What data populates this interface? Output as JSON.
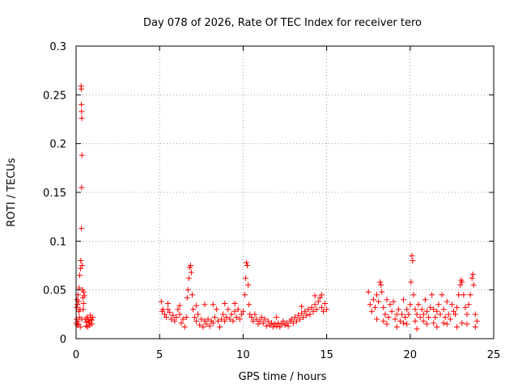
{
  "chart_data": {
    "type": "scatter",
    "title": "Day 078 of 2026, Rate Of TEC Index for receiver tero",
    "xlabel": "GPS time / hours",
    "ylabel": "ROTI / TECUs",
    "xlim": [
      0,
      25
    ],
    "ylim": [
      0,
      0.3
    ],
    "x_ticks": [
      0,
      5,
      10,
      15,
      20,
      25
    ],
    "x_tick_labels": [
      "0",
      "5",
      "10",
      "15",
      "20",
      "25"
    ],
    "y_ticks": [
      0,
      0.05,
      0.1,
      0.15,
      0.2,
      0.25,
      0.3
    ],
    "y_tick_labels": [
      "0",
      "0.05",
      "0.1",
      "0.15",
      "0.2",
      "0.25",
      "0.3"
    ],
    "grid": true,
    "grid_style": "dotted",
    "marker": "plus",
    "color": "#ff0000",
    "points": [
      [
        0.0,
        0.016
      ],
      [
        0.02,
        0.02
      ],
      [
        0.04,
        0.032
      ],
      [
        0.06,
        0.014
      ],
      [
        0.08,
        0.035
      ],
      [
        0.1,
        0.018
      ],
      [
        0.12,
        0.045
      ],
      [
        0.14,
        0.015
      ],
      [
        0.16,
        0.028
      ],
      [
        0.18,
        0.052
      ],
      [
        0.2,
        0.022
      ],
      [
        0.22,
        0.065
      ],
      [
        0.24,
        0.03
      ],
      [
        0.26,
        0.072
      ],
      [
        0.28,
        0.08
      ],
      [
        0.3,
        0.259
      ],
      [
        0.31,
        0.256
      ],
      [
        0.32,
        0.24
      ],
      [
        0.33,
        0.233
      ],
      [
        0.34,
        0.226
      ],
      [
        0.35,
        0.188
      ],
      [
        0.33,
        0.155
      ],
      [
        0.32,
        0.113
      ],
      [
        0.36,
        0.075
      ],
      [
        0.38,
        0.05
      ],
      [
        0.4,
        0.042
      ],
      [
        0.42,
        0.03
      ],
      [
        0.45,
        0.048
      ],
      [
        0.5,
        0.044
      ],
      [
        0.55,
        0.02
      ],
      [
        0.6,
        0.013
      ],
      [
        0.65,
        0.022
      ],
      [
        0.7,
        0.012
      ],
      [
        0.75,
        0.018
      ],
      [
        0.8,
        0.016
      ],
      [
        0.85,
        0.024
      ],
      [
        0.9,
        0.02
      ],
      [
        0.95,
        0.015
      ],
      [
        1.0,
        0.022
      ],
      [
        0.05,
        0.04
      ],
      [
        0.15,
        0.038
      ],
      [
        0.25,
        0.012
      ],
      [
        0.35,
        0.02
      ],
      [
        0.45,
        0.036
      ],
      [
        0.62,
        0.017
      ],
      [
        0.72,
        0.02
      ],
      [
        0.82,
        0.014
      ],
      [
        0.92,
        0.019
      ],
      [
        5.1,
        0.038
      ],
      [
        5.15,
        0.028
      ],
      [
        5.2,
        0.03
      ],
      [
        5.3,
        0.025
      ],
      [
        5.4,
        0.022
      ],
      [
        5.5,
        0.03
      ],
      [
        5.6,
        0.027
      ],
      [
        5.7,
        0.02
      ],
      [
        5.8,
        0.024
      ],
      [
        5.9,
        0.018
      ],
      [
        6.0,
        0.022
      ],
      [
        6.1,
        0.03
      ],
      [
        6.2,
        0.025
      ],
      [
        6.3,
        0.016
      ],
      [
        6.4,
        0.02
      ],
      [
        6.5,
        0.012
      ],
      [
        6.6,
        0.022
      ],
      [
        6.65,
        0.042
      ],
      [
        6.7,
        0.05
      ],
      [
        6.75,
        0.062
      ],
      [
        6.8,
        0.073
      ],
      [
        6.85,
        0.075
      ],
      [
        6.9,
        0.068
      ],
      [
        6.95,
        0.045
      ],
      [
        7.0,
        0.03
      ],
      [
        7.1,
        0.022
      ],
      [
        7.2,
        0.018
      ],
      [
        7.3,
        0.025
      ],
      [
        7.4,
        0.014
      ],
      [
        7.5,
        0.02
      ],
      [
        7.6,
        0.012
      ],
      [
        7.7,
        0.018
      ],
      [
        7.8,
        0.015
      ],
      [
        7.9,
        0.02
      ],
      [
        8.0,
        0.013
      ],
      [
        8.1,
        0.018
      ],
      [
        8.2,
        0.016
      ],
      [
        8.3,
        0.022
      ],
      [
        8.4,
        0.03
      ],
      [
        8.5,
        0.018
      ],
      [
        8.6,
        0.012
      ],
      [
        8.7,
        0.02
      ],
      [
        8.8,
        0.025
      ],
      [
        8.9,
        0.018
      ],
      [
        9.0,
        0.022
      ],
      [
        9.1,
        0.03
      ],
      [
        9.2,
        0.02
      ],
      [
        9.3,
        0.025
      ],
      [
        9.4,
        0.018
      ],
      [
        9.5,
        0.028
      ],
      [
        9.6,
        0.022
      ],
      [
        9.7,
        0.03
      ],
      [
        9.8,
        0.02
      ],
      [
        9.9,
        0.025
      ],
      [
        10.0,
        0.028
      ],
      [
        10.1,
        0.045
      ],
      [
        10.15,
        0.062
      ],
      [
        10.2,
        0.078
      ],
      [
        10.25,
        0.075
      ],
      [
        10.3,
        0.055
      ],
      [
        10.35,
        0.035
      ],
      [
        10.4,
        0.025
      ],
      [
        10.5,
        0.022
      ],
      [
        10.6,
        0.018
      ],
      [
        10.7,
        0.025
      ],
      [
        10.8,
        0.02
      ],
      [
        10.9,
        0.015
      ],
      [
        11.0,
        0.018
      ],
      [
        11.1,
        0.022
      ],
      [
        11.2,
        0.016
      ],
      [
        11.3,
        0.02
      ],
      [
        11.4,
        0.013
      ],
      [
        11.5,
        0.018
      ],
      [
        11.6,
        0.014
      ],
      [
        11.7,
        0.016
      ],
      [
        11.8,
        0.012
      ],
      [
        11.9,
        0.015
      ],
      [
        12.0,
        0.013
      ],
      [
        12.1,
        0.016
      ],
      [
        12.2,
        0.012
      ],
      [
        12.3,
        0.015
      ],
      [
        12.4,
        0.018
      ],
      [
        12.5,
        0.014
      ],
      [
        12.6,
        0.016
      ],
      [
        12.7,
        0.013
      ],
      [
        12.8,
        0.018
      ],
      [
        12.9,
        0.02
      ],
      [
        13.0,
        0.016
      ],
      [
        13.1,
        0.022
      ],
      [
        13.2,
        0.018
      ],
      [
        13.3,
        0.024
      ],
      [
        13.4,
        0.02
      ],
      [
        13.5,
        0.026
      ],
      [
        13.6,
        0.022
      ],
      [
        13.7,
        0.028
      ],
      [
        13.8,
        0.024
      ],
      [
        13.9,
        0.03
      ],
      [
        14.0,
        0.025
      ],
      [
        14.1,
        0.032
      ],
      [
        14.2,
        0.028
      ],
      [
        14.3,
        0.035
      ],
      [
        14.4,
        0.03
      ],
      [
        14.5,
        0.038
      ],
      [
        14.6,
        0.042
      ],
      [
        14.7,
        0.032
      ],
      [
        14.8,
        0.028
      ],
      [
        14.9,
        0.036
      ],
      [
        15.0,
        0.03
      ],
      [
        8.2,
        0.035
      ],
      [
        9.5,
        0.036
      ],
      [
        5.5,
        0.036
      ],
      [
        6.2,
        0.034
      ],
      [
        7.2,
        0.034
      ],
      [
        7.7,
        0.035
      ],
      [
        8.9,
        0.036
      ],
      [
        12.0,
        0.022
      ],
      [
        13.5,
        0.033
      ],
      [
        14.3,
        0.044
      ],
      [
        14.7,
        0.045
      ],
      [
        17.5,
        0.048
      ],
      [
        17.6,
        0.035
      ],
      [
        17.7,
        0.028
      ],
      [
        17.8,
        0.04
      ],
      [
        17.9,
        0.032
      ],
      [
        18.0,
        0.045
      ],
      [
        18.1,
        0.038
      ],
      [
        18.2,
        0.058
      ],
      [
        18.25,
        0.055
      ],
      [
        18.3,
        0.048
      ],
      [
        18.4,
        0.032
      ],
      [
        18.5,
        0.025
      ],
      [
        18.6,
        0.04
      ],
      [
        18.7,
        0.022
      ],
      [
        18.8,
        0.035
      ],
      [
        18.9,
        0.028
      ],
      [
        19.0,
        0.038
      ],
      [
        19.1,
        0.02
      ],
      [
        19.2,
        0.025
      ],
      [
        19.3,
        0.03
      ],
      [
        19.4,
        0.018
      ],
      [
        19.5,
        0.025
      ],
      [
        19.6,
        0.04
      ],
      [
        19.7,
        0.022
      ],
      [
        19.8,
        0.03
      ],
      [
        19.9,
        0.025
      ],
      [
        20.0,
        0.035
      ],
      [
        20.05,
        0.058
      ],
      [
        20.1,
        0.085
      ],
      [
        20.15,
        0.08
      ],
      [
        20.2,
        0.045
      ],
      [
        20.3,
        0.03
      ],
      [
        20.4,
        0.025
      ],
      [
        20.5,
        0.035
      ],
      [
        20.6,
        0.022
      ],
      [
        20.7,
        0.03
      ],
      [
        20.8,
        0.025
      ],
      [
        20.9,
        0.04
      ],
      [
        21.0,
        0.028
      ],
      [
        21.1,
        0.022
      ],
      [
        21.2,
        0.032
      ],
      [
        21.3,
        0.045
      ],
      [
        21.4,
        0.03
      ],
      [
        21.5,
        0.022
      ],
      [
        21.6,
        0.028
      ],
      [
        21.7,
        0.035
      ],
      [
        21.8,
        0.025
      ],
      [
        21.9,
        0.045
      ],
      [
        22.0,
        0.03
      ],
      [
        22.1,
        0.022
      ],
      [
        22.2,
        0.038
      ],
      [
        22.3,
        0.025
      ],
      [
        22.4,
        0.02
      ],
      [
        22.5,
        0.035
      ],
      [
        22.6,
        0.028
      ],
      [
        22.7,
        0.025
      ],
      [
        22.8,
        0.032
      ],
      [
        22.9,
        0.045
      ],
      [
        23.0,
        0.055
      ],
      [
        23.05,
        0.06
      ],
      [
        23.1,
        0.058
      ],
      [
        23.2,
        0.045
      ],
      [
        23.3,
        0.032
      ],
      [
        23.4,
        0.025
      ],
      [
        23.5,
        0.035
      ],
      [
        23.6,
        0.045
      ],
      [
        23.7,
        0.062
      ],
      [
        23.75,
        0.066
      ],
      [
        23.8,
        0.055
      ],
      [
        23.9,
        0.025
      ],
      [
        24.0,
        0.018
      ],
      [
        18.0,
        0.02
      ],
      [
        18.6,
        0.015
      ],
      [
        19.2,
        0.012
      ],
      [
        19.8,
        0.015
      ],
      [
        20.4,
        0.01
      ],
      [
        21.0,
        0.015
      ],
      [
        21.6,
        0.012
      ],
      [
        22.2,
        0.015
      ],
      [
        22.8,
        0.012
      ],
      [
        23.4,
        0.015
      ],
      [
        23.9,
        0.012
      ],
      [
        18.4,
        0.018
      ],
      [
        19.6,
        0.016
      ],
      [
        20.8,
        0.018
      ],
      [
        22.0,
        0.016
      ],
      [
        23.1,
        0.016
      ],
      [
        20.3,
        0.018
      ],
      [
        21.4,
        0.016
      ]
    ]
  }
}
